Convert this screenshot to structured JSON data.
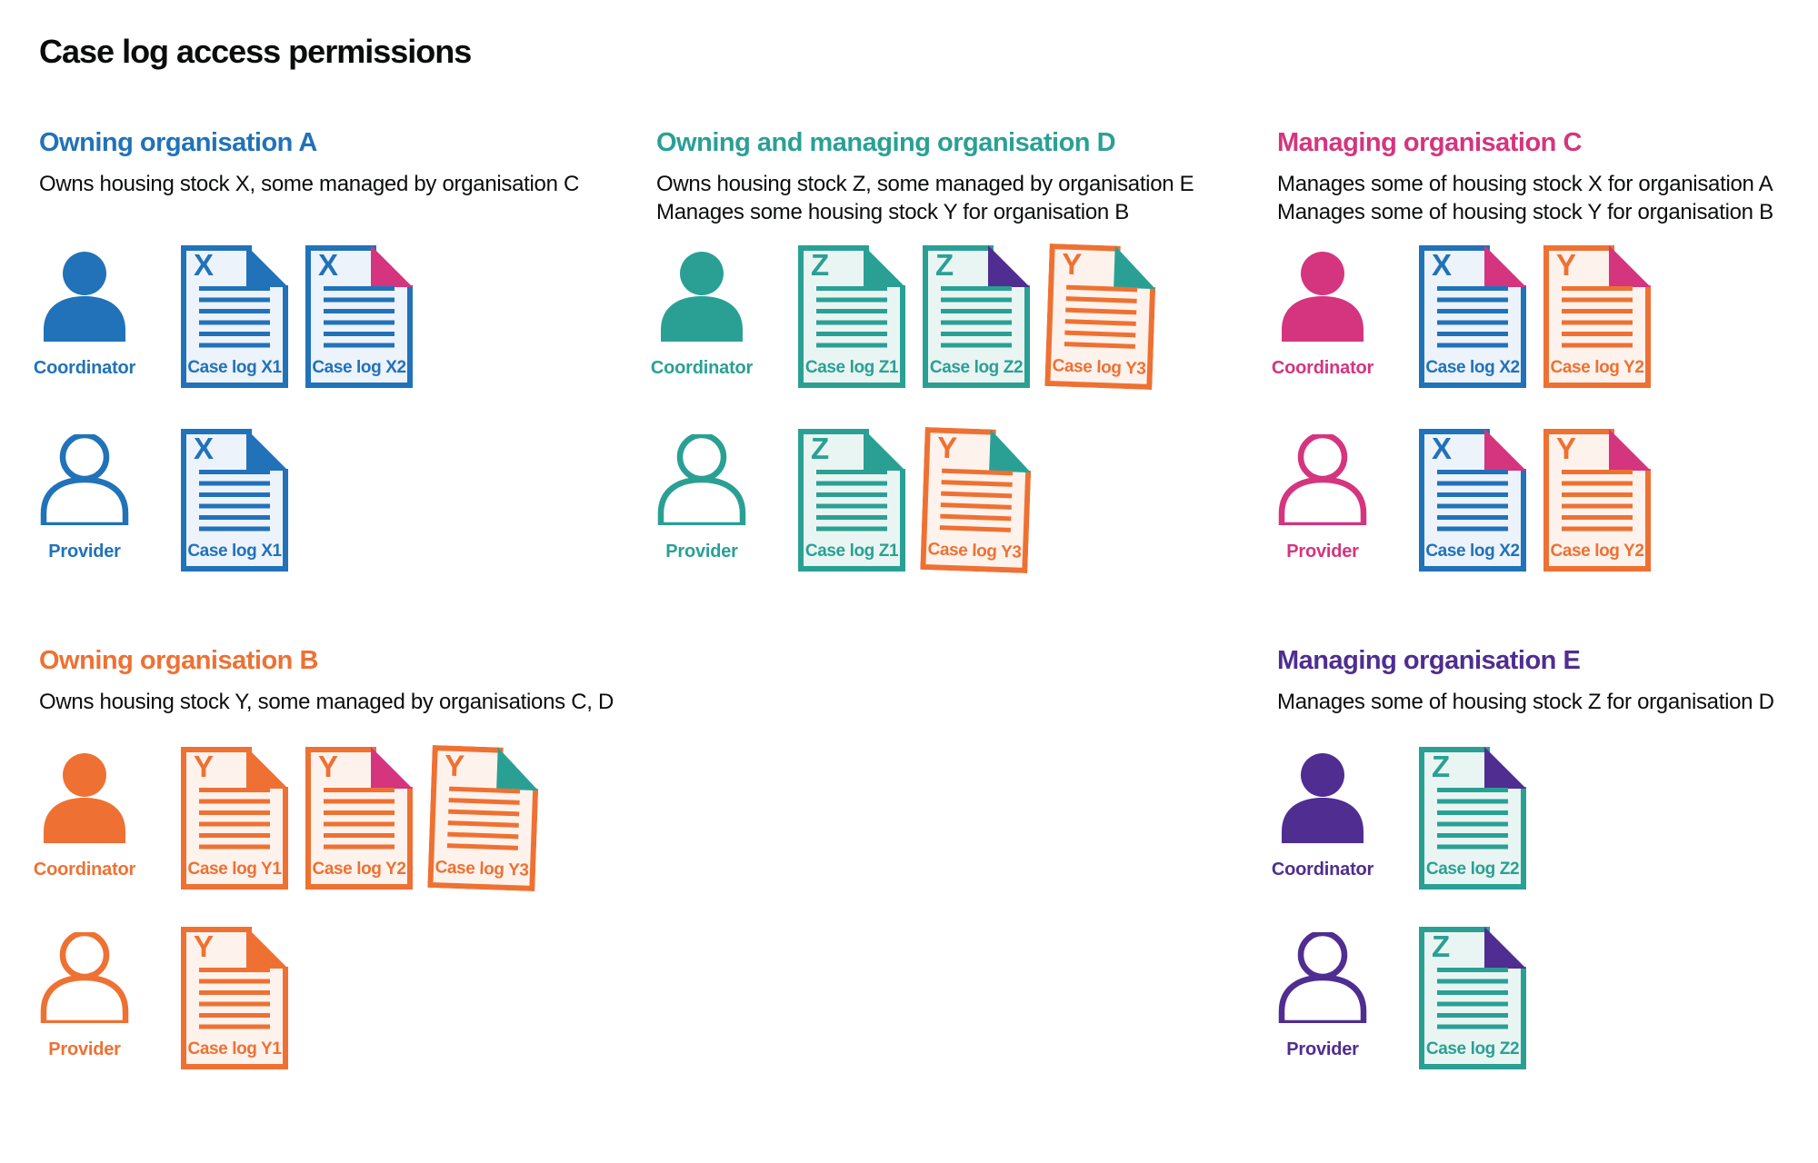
{
  "title": "Case log access permissions",
  "colors": {
    "blue": "#2172b9",
    "teal": "#2aa095",
    "pink": "#d4357e",
    "orange": "#ee7133",
    "purple": "#4f2d91",
    "text": "#0b0c0c"
  },
  "doc_backgrounds": {
    "blue": "#edf3fb",
    "teal": "#e9f5f2",
    "orange": "#fdf2ec"
  },
  "sections": [
    {
      "id": "organisation-a",
      "band": "top",
      "column": 0,
      "color": "blue",
      "heading": "Owning organisation A",
      "description": [
        "Owns housing stock X, some managed by organisation C"
      ],
      "rows": [
        {
          "role": "Coordinator",
          "person_style": "filled",
          "docs": [
            {
              "letter": "X",
              "label": "Case log X1",
              "doc_color": "blue",
              "fold_color": "blue"
            },
            {
              "letter": "X",
              "label": "Case log X2",
              "doc_color": "blue",
              "fold_color": "pink"
            }
          ]
        },
        {
          "role": "Provider",
          "person_style": "outline",
          "docs": [
            {
              "letter": "X",
              "label": "Case log X1",
              "doc_color": "blue",
              "fold_color": "blue"
            }
          ]
        }
      ]
    },
    {
      "id": "organisation-d",
      "band": "top",
      "column": 1,
      "color": "teal",
      "heading": "Owning and managing organisation D",
      "description": [
        "Owns housing stock Z, some managed by organisation E",
        "Manages some housing stock Y for organisation B"
      ],
      "rows": [
        {
          "role": "Coordinator",
          "person_style": "filled",
          "docs": [
            {
              "letter": "Z",
              "label": "Case log Z1",
              "doc_color": "teal",
              "fold_color": "teal"
            },
            {
              "letter": "Z",
              "label": "Case log Z2",
              "doc_color": "teal",
              "fold_color": "purple"
            },
            {
              "letter": "Y",
              "label": "Case log Y3",
              "doc_color": "orange",
              "fold_color": "teal",
              "tilted": true
            }
          ]
        },
        {
          "role": "Provider",
          "person_style": "outline",
          "docs": [
            {
              "letter": "Z",
              "label": "Case log Z1",
              "doc_color": "teal",
              "fold_color": "teal"
            },
            {
              "letter": "Y",
              "label": "Case log Y3",
              "doc_color": "orange",
              "fold_color": "teal",
              "tilted": true
            }
          ]
        }
      ]
    },
    {
      "id": "organisation-c",
      "band": "top",
      "column": 2,
      "color": "pink",
      "heading": "Managing organisation C",
      "description": [
        "Manages some of housing stock X for organisation A",
        "Manages some of housing stock Y for organisation B"
      ],
      "rows": [
        {
          "role": "Coordinator",
          "person_style": "filled",
          "docs": [
            {
              "letter": "X",
              "label": "Case log X2",
              "doc_color": "blue",
              "fold_color": "pink"
            },
            {
              "letter": "Y",
              "label": "Case log Y2",
              "doc_color": "orange",
              "fold_color": "pink"
            }
          ]
        },
        {
          "role": "Provider",
          "person_style": "outline",
          "docs": [
            {
              "letter": "X",
              "label": "Case log X2",
              "doc_color": "blue",
              "fold_color": "pink"
            },
            {
              "letter": "Y",
              "label": "Case log Y2",
              "doc_color": "orange",
              "fold_color": "pink"
            }
          ]
        }
      ]
    },
    {
      "id": "organisation-b",
      "band": "bottom",
      "column": 0,
      "color": "orange",
      "heading": "Owning organisation B",
      "description": [
        "Owns housing stock Y, some managed by organisations C, D"
      ],
      "rows": [
        {
          "role": "Coordinator",
          "person_style": "filled",
          "docs": [
            {
              "letter": "Y",
              "label": "Case log Y1",
              "doc_color": "orange",
              "fold_color": "orange"
            },
            {
              "letter": "Y",
              "label": "Case log Y2",
              "doc_color": "orange",
              "fold_color": "pink"
            },
            {
              "letter": "Y",
              "label": "Case log Y3",
              "doc_color": "orange",
              "fold_color": "teal",
              "tilted": true
            }
          ]
        },
        {
          "role": "Provider",
          "person_style": "outline",
          "docs": [
            {
              "letter": "Y",
              "label": "Case log Y1",
              "doc_color": "orange",
              "fold_color": "orange"
            }
          ]
        }
      ]
    },
    {
      "id": "organisation-e",
      "band": "bottom",
      "column": 2,
      "color": "purple",
      "heading": "Managing organisation E",
      "description": [
        "Manages some of housing stock Z for organisation D"
      ],
      "rows": [
        {
          "role": "Coordinator",
          "person_style": "filled",
          "docs": [
            {
              "letter": "Z",
              "label": "Case log Z2",
              "doc_color": "teal",
              "fold_color": "purple"
            }
          ]
        },
        {
          "role": "Provider",
          "person_style": "outline",
          "docs": [
            {
              "letter": "Z",
              "label": "Case log Z2",
              "doc_color": "teal",
              "fold_color": "purple"
            }
          ]
        }
      ]
    }
  ]
}
